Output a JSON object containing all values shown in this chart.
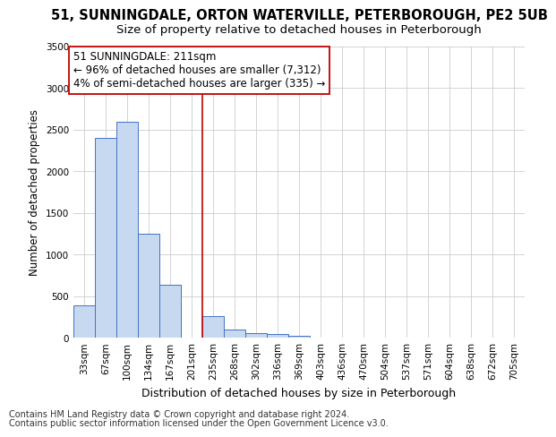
{
  "title": "51, SUNNINGDALE, ORTON WATERVILLE, PETERBOROUGH, PE2 5UB",
  "subtitle": "Size of property relative to detached houses in Peterborough",
  "xlabel": "Distribution of detached houses by size in Peterborough",
  "ylabel": "Number of detached properties",
  "categories": [
    "33sqm",
    "67sqm",
    "100sqm",
    "134sqm",
    "167sqm",
    "201sqm",
    "235sqm",
    "268sqm",
    "302sqm",
    "336sqm",
    "369sqm",
    "403sqm",
    "436sqm",
    "470sqm",
    "504sqm",
    "537sqm",
    "571sqm",
    "604sqm",
    "638sqm",
    "672sqm",
    "705sqm"
  ],
  "bar_values": [
    390,
    2400,
    2600,
    1250,
    640,
    0,
    260,
    100,
    55,
    40,
    20,
    0,
    0,
    0,
    0,
    0,
    0,
    0,
    0,
    0,
    0
  ],
  "bar_color": "#c6d9f0",
  "bar_edge_color": "#4472c4",
  "vline_color": "#c00000",
  "annotation_line1": "51 SUNNINGDALE: 211sqm",
  "annotation_line2": "← 96% of detached houses are smaller (7,312)",
  "annotation_line3": "4% of semi-detached houses are larger (335) →",
  "annotation_box_color": "#ffffff",
  "annotation_box_edge_color": "#c00000",
  "ylim": [
    0,
    3500
  ],
  "yticks": [
    0,
    500,
    1000,
    1500,
    2000,
    2500,
    3000,
    3500
  ],
  "footer1": "Contains HM Land Registry data © Crown copyright and database right 2024.",
  "footer2": "Contains public sector information licensed under the Open Government Licence v3.0.",
  "bg_color": "#ffffff",
  "grid_color": "#cccccc",
  "title_fontsize": 10.5,
  "subtitle_fontsize": 9.5,
  "xlabel_fontsize": 9,
  "ylabel_fontsize": 8.5,
  "tick_fontsize": 7.5,
  "annotation_fontsize": 8.5,
  "footer_fontsize": 7
}
